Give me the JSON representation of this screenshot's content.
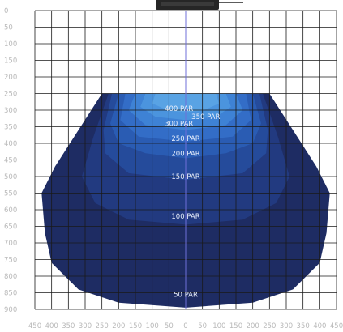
{
  "chart_data": {
    "type": "heatmap",
    "title": "",
    "xlabel": "",
    "ylabel": "",
    "x_ticks": [
      "450",
      "400",
      "350",
      "300",
      "250",
      "200",
      "150",
      "100",
      "50",
      "0",
      "50",
      "100",
      "150",
      "200",
      "250",
      "300",
      "350",
      "400",
      "450"
    ],
    "y_ticks": [
      "0",
      "50",
      "100",
      "150",
      "200",
      "250",
      "300",
      "350",
      "400",
      "450",
      "500",
      "550",
      "600",
      "650",
      "700",
      "750",
      "800",
      "850",
      "900"
    ],
    "xlim": [
      -450,
      450
    ],
    "ylim": [
      0,
      900
    ],
    "grid": true,
    "center_line": true,
    "contours": [
      {
        "label": "50 PAR",
        "color": "#1e2c63",
        "label_x": 0,
        "label_y": 855,
        "outline": [
          [
            -210,
            250
          ],
          [
            -250,
            250
          ],
          [
            -390,
            470
          ],
          [
            -430,
            550
          ],
          [
            -420,
            670
          ],
          [
            -400,
            760
          ],
          [
            -320,
            840
          ],
          [
            -200,
            880
          ],
          [
            0,
            895
          ],
          [
            200,
            880
          ],
          [
            320,
            840
          ],
          [
            400,
            760
          ],
          [
            420,
            670
          ],
          [
            430,
            550
          ],
          [
            390,
            470
          ],
          [
            250,
            250
          ],
          [
            210,
            250
          ]
        ]
      },
      {
        "label": "100 PAR",
        "color": "#223a80",
        "label_x": 0,
        "label_y": 620,
        "outline": [
          [
            -230,
            250
          ],
          [
            -275,
            380
          ],
          [
            -310,
            500
          ],
          [
            -270,
            580
          ],
          [
            -170,
            630
          ],
          [
            0,
            645
          ],
          [
            170,
            630
          ],
          [
            270,
            580
          ],
          [
            310,
            500
          ],
          [
            275,
            380
          ],
          [
            230,
            250
          ]
        ]
      },
      {
        "label": "150 PAR",
        "color": "#254b9b",
        "label_x": 0,
        "label_y": 500,
        "outline": [
          [
            -220,
            250
          ],
          [
            -245,
            360
          ],
          [
            -240,
            430
          ],
          [
            -170,
            490
          ],
          [
            0,
            510
          ],
          [
            170,
            490
          ],
          [
            240,
            430
          ],
          [
            245,
            360
          ],
          [
            220,
            250
          ]
        ]
      },
      {
        "label": "200 PAR",
        "color": "#2a5cb3",
        "label_x": 0,
        "label_y": 430,
        "outline": [
          [
            -200,
            250
          ],
          [
            -225,
            340
          ],
          [
            -200,
            400
          ],
          [
            -120,
            430
          ],
          [
            0,
            445
          ],
          [
            120,
            430
          ],
          [
            200,
            400
          ],
          [
            225,
            340
          ],
          [
            200,
            250
          ]
        ]
      },
      {
        "label": "250 PAR",
        "color": "#336dc7",
        "label_x": 0,
        "label_y": 385,
        "outline": [
          [
            -180,
            250
          ],
          [
            -195,
            330
          ],
          [
            -140,
            380
          ],
          [
            0,
            395
          ],
          [
            140,
            380
          ],
          [
            195,
            330
          ],
          [
            180,
            250
          ]
        ]
      },
      {
        "label": "300 PAR",
        "color": "#3e82d5",
        "label_x": -20,
        "label_y": 340,
        "outline": [
          [
            -150,
            250
          ],
          [
            -170,
            300
          ],
          [
            -120,
            345
          ],
          [
            0,
            360
          ],
          [
            120,
            345
          ],
          [
            170,
            300
          ],
          [
            150,
            250
          ]
        ]
      },
      {
        "label": "350 PAR",
        "color": "#4b94de",
        "label_x": 60,
        "label_y": 320,
        "outline": [
          [
            -120,
            250
          ],
          [
            -135,
            290
          ],
          [
            -90,
            320
          ],
          [
            0,
            330
          ],
          [
            90,
            320
          ],
          [
            135,
            290
          ],
          [
            120,
            250
          ]
        ]
      },
      {
        "label": "400 PAR",
        "color": "#59a3e4",
        "label_x": -20,
        "label_y": 295,
        "outline": [
          [
            -90,
            250
          ],
          [
            -100,
            280
          ],
          [
            -50,
            302
          ],
          [
            0,
            306
          ],
          [
            50,
            302
          ],
          [
            100,
            280
          ],
          [
            90,
            250
          ]
        ]
      }
    ]
  },
  "colors": {
    "background": "#ffffff",
    "grid": "#1a1a1a",
    "center_line": "#6f6fd8",
    "tick_text": "#b9b9b9",
    "par_text": "#e8eefb",
    "fixture": "#262626"
  },
  "icons": {
    "fixture": "light-fixture-icon"
  }
}
